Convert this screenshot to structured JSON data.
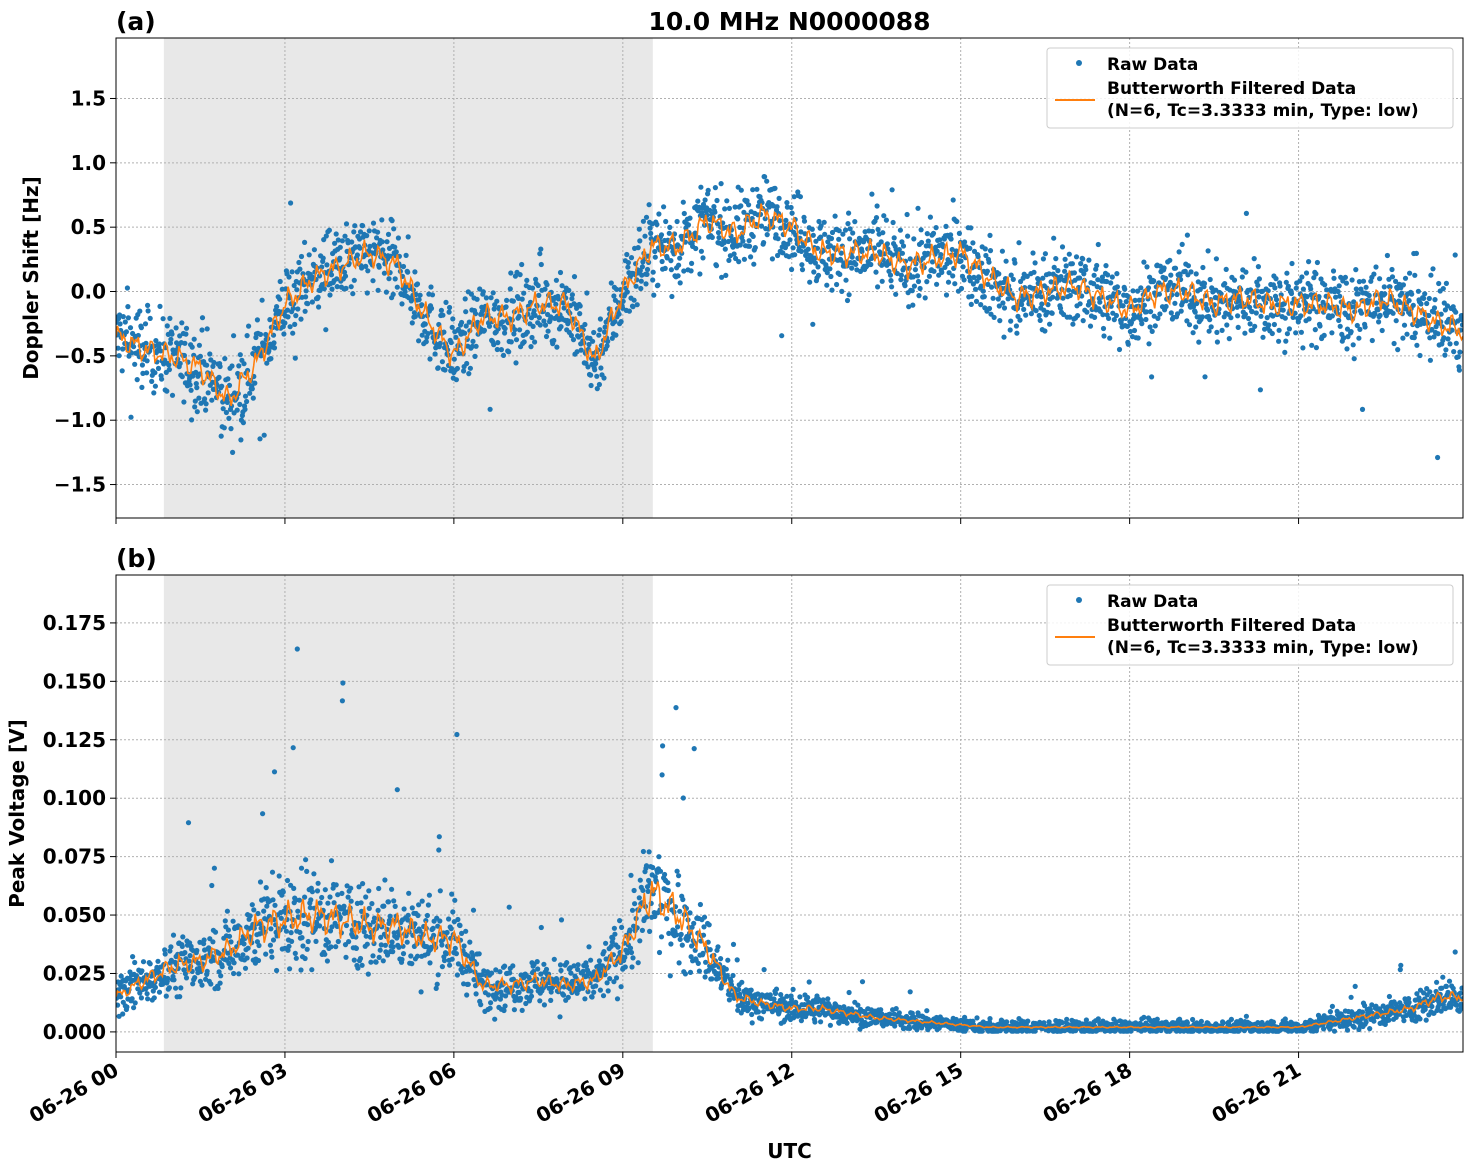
{
  "chart_data": [
    {
      "type": "scatter",
      "panel_label": "(a)",
      "title": "10.0 MHz N0000088",
      "xlabel": "",
      "ylabel": "Doppler Shift [Hz]",
      "ylim": [
        -1.76,
        1.97
      ],
      "xlim_hours": [
        0,
        23.92
      ],
      "yticks": [
        -1.5,
        -1.0,
        -0.5,
        0.0,
        0.5,
        1.0,
        1.5
      ],
      "ytick_labels": [
        "−1.5",
        "−1.0",
        "−0.5",
        "0.0",
        "0.5",
        "1.0",
        "1.5"
      ],
      "grid": true,
      "shaded_interval": [
        "06-26 00:51",
        "06-26 09:32"
      ],
      "legend_position": "top-right",
      "legend": [
        "Raw Data",
        "Butterworth Filtered Data",
        "(N=6, Tc=3.3333 min, Type: low)"
      ],
      "series": [
        {
          "name": "Raw Data",
          "style": "points",
          "color": "#1f77b4",
          "spread": 0.3
        },
        {
          "name": "Butterworth Filtered Data",
          "style": "line",
          "color": "#ff7f0e",
          "x_hours": [
            0,
            0.5,
            1,
            1.5,
            2,
            2.5,
            3,
            3.5,
            4,
            4.5,
            5,
            5.5,
            6,
            6.5,
            7,
            7.5,
            8,
            8.5,
            9,
            9.5,
            10,
            10.5,
            11,
            11.5,
            12,
            12.5,
            13,
            13.5,
            14,
            14.5,
            15,
            15.5,
            16,
            16.5,
            17,
            17.5,
            18,
            18.5,
            19,
            19.5,
            20,
            20.5,
            21,
            21.5,
            22,
            22.5,
            23,
            23.5,
            23.9
          ],
          "values": [
            -0.35,
            -0.45,
            -0.5,
            -0.6,
            -0.85,
            -0.55,
            -0.1,
            0.1,
            0.2,
            0.3,
            0.2,
            -0.2,
            -0.5,
            -0.2,
            -0.2,
            -0.1,
            -0.1,
            -0.55,
            0.0,
            0.35,
            0.35,
            0.55,
            0.45,
            0.6,
            0.5,
            0.3,
            0.3,
            0.3,
            0.2,
            0.25,
            0.3,
            0.1,
            -0.05,
            0.0,
            0.05,
            -0.05,
            -0.15,
            0.0,
            0.0,
            -0.1,
            -0.05,
            -0.1,
            -0.1,
            -0.1,
            -0.15,
            -0.05,
            -0.15,
            -0.25,
            -0.3
          ]
        }
      ]
    },
    {
      "type": "scatter",
      "panel_label": "(b)",
      "title": "",
      "xlabel": "UTC",
      "ylabel": "Peak Voltage [V]",
      "ylim": [
        -0.0086,
        0.1955
      ],
      "xlim_hours": [
        0,
        23.92
      ],
      "yticks": [
        0,
        0.025,
        0.05,
        0.075,
        0.1,
        0.125,
        0.15,
        0.175
      ],
      "ytick_labels": [
        "0.000",
        "0.025",
        "0.050",
        "0.075",
        "0.100",
        "0.125",
        "0.150",
        "0.175"
      ],
      "xticks_hours": [
        0,
        3,
        6,
        9,
        12,
        15,
        18,
        21
      ],
      "xtick_labels": [
        "06-26 00",
        "06-26 03",
        "06-26 06",
        "06-26 09",
        "06-26 12",
        "06-26 15",
        "06-26 18",
        "06-26 21"
      ],
      "grid": true,
      "shaded_interval": [
        "06-26 00:51",
        "06-26 09:32"
      ],
      "legend_position": "top-right",
      "legend": [
        "Raw Data",
        "Butterworth Filtered Data",
        "(N=6, Tc=3.3333 min, Type: low)"
      ],
      "series": [
        {
          "name": "Raw Data",
          "style": "points",
          "color": "#1f77b4"
        },
        {
          "name": "Butterworth Filtered Data",
          "style": "line",
          "color": "#ff7f0e",
          "x_hours": [
            0,
            0.5,
            1,
            1.5,
            2,
            2.5,
            3,
            3.5,
            4,
            4.5,
            5,
            5.5,
            6,
            6.5,
            7,
            7.5,
            8,
            8.5,
            9,
            9.5,
            10,
            10.5,
            11,
            11.5,
            12,
            12.5,
            13,
            13.5,
            14,
            14.5,
            15,
            15.5,
            16,
            17,
            18,
            19,
            20,
            21,
            21.5,
            22,
            22.5,
            23,
            23.5,
            23.9
          ],
          "values": [
            0.015,
            0.022,
            0.028,
            0.03,
            0.035,
            0.045,
            0.048,
            0.05,
            0.048,
            0.045,
            0.045,
            0.04,
            0.04,
            0.02,
            0.02,
            0.022,
            0.02,
            0.022,
            0.035,
            0.06,
            0.05,
            0.035,
            0.015,
            0.012,
            0.01,
            0.01,
            0.008,
            0.006,
            0.005,
            0.004,
            0.003,
            0.002,
            0.002,
            0.002,
            0.002,
            0.002,
            0.002,
            0.002,
            0.004,
            0.006,
            0.008,
            0.01,
            0.015,
            0.015
          ]
        }
      ]
    }
  ]
}
